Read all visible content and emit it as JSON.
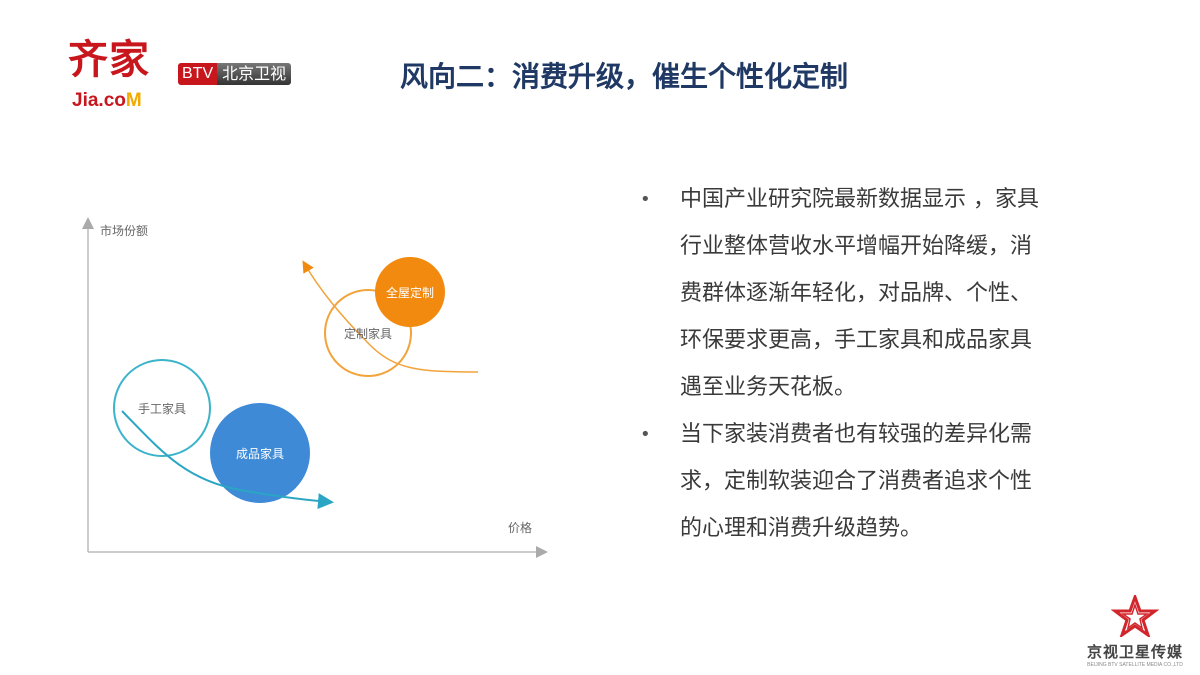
{
  "header": {
    "logo_main": "齐家",
    "logo_domain_prefix": "Jia.co",
    "logo_domain_suffix": "M",
    "btv_badge": "BTV",
    "btv_name": "北京卫视",
    "title": "风向二：消费升级，催生个性化定制"
  },
  "diagram": {
    "y_axis_label": "市场份额",
    "x_axis_label": "价格",
    "nodes": [
      {
        "label": "全屋定制",
        "color": "#f28a0f",
        "style": "filled"
      },
      {
        "label": "定制家具",
        "color": "#f2a33a",
        "style": "outline"
      },
      {
        "label": "手工家具",
        "color": "#3bb3c9",
        "style": "outline"
      },
      {
        "label": "成品家具",
        "color": "#3e8ad6",
        "style": "filled"
      }
    ]
  },
  "bullets": [
    {
      "lines": [
        "中国产业研究院最新数据显示 ，家具",
        "行业整体营收水平增幅开始降缓，消",
        "费群体逐渐年轻化，对品牌、个性、",
        "环保要求更高，手工家具和成品家具",
        "遇至业务天花板。"
      ]
    },
    {
      "lines": [
        "当下家装消费者也有较强的差异化需",
        "求，定制软装迎合了消费者追求个性",
        "的心理和消费升级趋势。"
      ]
    }
  ],
  "bullet_symbol": "•",
  "footer": {
    "name": "京视卫星传媒",
    "subtitle": "BEIJING BTV SATELLITE MEDIA CO.,LTD"
  }
}
